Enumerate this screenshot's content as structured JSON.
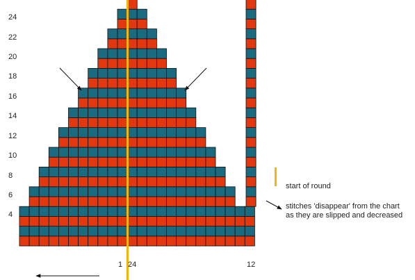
{
  "colors": {
    "odd_row": "#e2380f",
    "even_row": "#1a6a80",
    "grid_line": "#111111",
    "start_marker": "#f5b50a",
    "arrow": "#111111",
    "text": "#222222"
  },
  "grid": {
    "rows": 25,
    "cols": 24,
    "row_spans": [
      [
        1,
        24
      ],
      [
        1,
        24
      ],
      [
        1,
        24
      ],
      [
        1,
        24
      ],
      [
        2,
        22
      ],
      [
        2,
        22
      ],
      [
        3,
        21
      ],
      [
        3,
        21
      ],
      [
        4,
        20
      ],
      [
        4,
        20
      ],
      [
        5,
        19
      ],
      [
        5,
        19
      ],
      [
        6,
        18
      ],
      [
        6,
        18
      ],
      [
        7,
        17
      ],
      [
        7,
        17
      ],
      [
        8,
        16
      ],
      [
        8,
        16
      ],
      [
        9,
        15
      ],
      [
        9,
        15
      ],
      [
        10,
        14
      ],
      [
        10,
        14
      ],
      [
        11,
        13
      ],
      [
        11,
        13
      ],
      [
        12,
        12
      ]
    ],
    "side_column": 24
  },
  "row_labels": [
    "4",
    "6",
    "8",
    "10",
    "12",
    "14",
    "16",
    "18",
    "20",
    "22",
    "24"
  ],
  "column_labels": {
    "first": "1",
    "center": "24",
    "right": "12"
  },
  "legend": {
    "start_of_round": "start of round",
    "disappear_line1": "stitches 'disappear' from the chart",
    "disappear_line2": "as they are slipped and  decreased"
  }
}
